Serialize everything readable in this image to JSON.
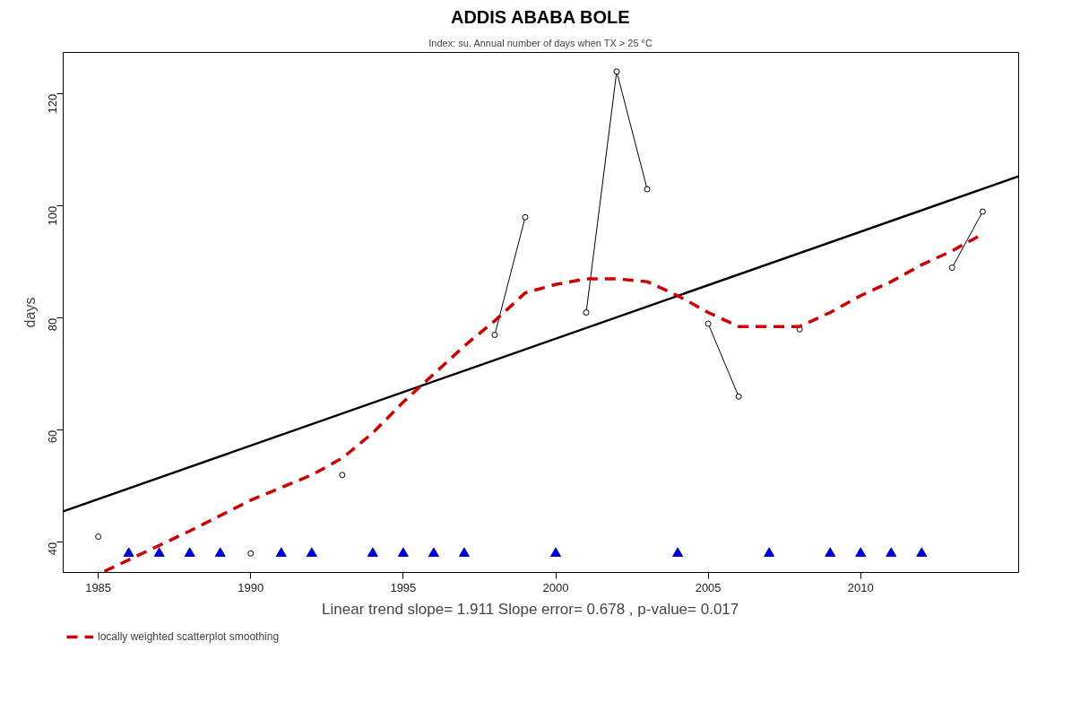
{
  "chart_data": {
    "type": "line",
    "title": "ADDIS ABABA BOLE",
    "subtitle": "Index: su. Annual number of days when TX > 25 °C",
    "ylabel": "days",
    "annotations": [
      "Linear trend slope= 1.911    Slope error= 0.678 ,   p-value= 0.017"
    ],
    "xlim": [
      1983.85,
      2015.18
    ],
    "ylim": [
      34.6,
      127.4
    ],
    "xticks": [
      1985,
      1990,
      1995,
      2000,
      2005,
      2010
    ],
    "yticks": [
      40,
      60,
      80,
      100,
      120
    ],
    "grid": false,
    "legend": "bottom left",
    "series": [
      {
        "color": "#000000",
        "marker": "circle",
        "line_style": "solid",
        "x": [
          1985,
          1986,
          1987,
          1988,
          1989,
          1990,
          1991,
          1992,
          1993,
          1994,
          1995,
          1996,
          1997,
          1998,
          1999,
          2000,
          2001,
          2002,
          2003,
          2004,
          2005,
          2006,
          2007,
          2008,
          2009,
          2010,
          2011,
          2012,
          2013,
          2014
        ],
        "values": [
          41,
          null,
          null,
          null,
          null,
          38,
          null,
          null,
          52,
          null,
          null,
          null,
          null,
          77,
          98,
          null,
          81,
          124,
          103,
          null,
          79,
          66,
          null,
          78,
          null,
          null,
          null,
          null,
          89,
          99
        ]
      },
      {
        "type": "scatter",
        "color": "#0000cc",
        "marker": "triangle",
        "x": [
          1986,
          1987,
          1988,
          1989,
          1991,
          1992,
          1994,
          1995,
          1996,
          1997,
          2000,
          2004,
          2007,
          2009,
          2010,
          2011,
          2012
        ],
        "values": [
          38,
          38,
          38,
          38,
          38,
          38,
          38,
          38,
          38,
          38,
          38,
          38,
          38,
          38,
          38,
          38,
          38
        ]
      },
      {
        "color": "#000000",
        "marker": "none",
        "line_style": "solid",
        "x": [
          1983.85,
          2015.18
        ],
        "values": [
          45.5,
          105.3
        ]
      },
      {
        "name": "locally weighted scatterplot smoothing",
        "color": "#cc0000",
        "marker": "none",
        "line_style": "dashed",
        "x": [
          1985.2,
          1988,
          1990,
          1992,
          1993,
          1994,
          1995,
          1996,
          1997,
          1998,
          1999,
          2000,
          2001,
          2002,
          2003,
          2004,
          2005,
          2006,
          2007,
          2008,
          2009,
          2010,
          2011,
          2012,
          2013,
          2014
        ],
        "values": [
          34.8,
          42,
          47.5,
          52,
          55,
          59.5,
          65,
          70,
          75,
          79.5,
          84.5,
          86,
          87,
          87,
          86.5,
          84,
          81,
          78.5,
          78.5,
          78.5,
          81,
          84,
          86.5,
          89.5,
          92,
          95
        ]
      }
    ]
  }
}
